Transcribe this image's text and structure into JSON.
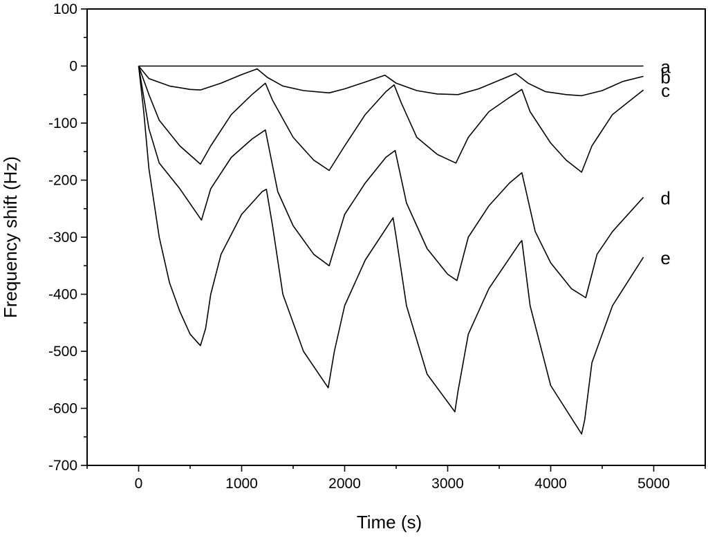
{
  "chart_data": {
    "type": "line",
    "title": "",
    "xlabel": "Time (s)",
    "ylabel": "Frequency shift (Hz)",
    "xlim": [
      -500,
      5500
    ],
    "ylim": [
      -700,
      100
    ],
    "xticks": [
      0,
      1000,
      2000,
      3000,
      4000,
      5000
    ],
    "yticks": [
      100,
      0,
      -100,
      -200,
      -300,
      -400,
      -500,
      -600,
      -700
    ],
    "grid": false,
    "legend": "inline labels at right end of curves",
    "series": [
      {
        "name": "a",
        "x": [
          0,
          4900
        ],
        "y": [
          0,
          0
        ]
      },
      {
        "name": "b",
        "x": [
          0,
          100,
          300,
          500,
          600,
          800,
          1000,
          1150,
          1250,
          1400,
          1600,
          1850,
          2000,
          2200,
          2390,
          2500,
          2700,
          2900,
          3100,
          3300,
          3500,
          3660,
          3780,
          3950,
          4150,
          4300,
          4500,
          4700,
          4900
        ],
        "y": [
          0,
          -22,
          -35,
          -41,
          -42,
          -30,
          -15,
          -5,
          -20,
          -35,
          -43,
          -47,
          -40,
          -28,
          -16,
          -30,
          -43,
          -49,
          -50,
          -40,
          -25,
          -13,
          -30,
          -45,
          -50,
          -52,
          -43,
          -27,
          -18
        ]
      },
      {
        "name": "c",
        "x": [
          0,
          100,
          200,
          400,
          600,
          700,
          900,
          1100,
          1230,
          1300,
          1500,
          1700,
          1850,
          2000,
          2200,
          2400,
          2480,
          2550,
          2700,
          2900,
          3080,
          3200,
          3400,
          3600,
          3720,
          3800,
          4000,
          4150,
          4300,
          4400,
          4600,
          4900
        ],
        "y": [
          0,
          -50,
          -95,
          -140,
          -172,
          -140,
          -85,
          -50,
          -30,
          -60,
          -125,
          -165,
          -183,
          -140,
          -85,
          -45,
          -33,
          -65,
          -125,
          -155,
          -170,
          -125,
          -80,
          -55,
          -41,
          -80,
          -135,
          -165,
          -186,
          -140,
          -85,
          -42
        ]
      },
      {
        "name": "d",
        "x": [
          0,
          100,
          200,
          400,
          610,
          700,
          900,
          1100,
          1230,
          1350,
          1500,
          1700,
          1850,
          2000,
          2200,
          2400,
          2490,
          2600,
          2800,
          3000,
          3090,
          3200,
          3400,
          3600,
          3720,
          3850,
          4000,
          4200,
          4340,
          4450,
          4600,
          4900
        ],
        "y": [
          0,
          -110,
          -170,
          -215,
          -270,
          -215,
          -160,
          -128,
          -112,
          -220,
          -280,
          -330,
          -350,
          -260,
          -205,
          -160,
          -148,
          -240,
          -320,
          -365,
          -376,
          -300,
          -245,
          -205,
          -187,
          -290,
          -345,
          -390,
          -406,
          -330,
          -290,
          -230
        ]
      },
      {
        "name": "e",
        "x": [
          0,
          50,
          100,
          200,
          300,
          400,
          500,
          600,
          650,
          700,
          800,
          1000,
          1200,
          1240,
          1300,
          1400,
          1600,
          1840,
          1900,
          2000,
          2200,
          2470,
          2500,
          2600,
          2800,
          3070,
          3100,
          3200,
          3400,
          3700,
          3720,
          3800,
          4000,
          4300,
          4330,
          4400,
          4600,
          4900
        ],
        "y": [
          0,
          -80,
          -180,
          -300,
          -380,
          -430,
          -470,
          -490,
          -460,
          -400,
          -330,
          -260,
          -220,
          -216,
          -280,
          -400,
          -500,
          -564,
          -500,
          -420,
          -340,
          -266,
          -300,
          -420,
          -540,
          -606,
          -570,
          -470,
          -390,
          -310,
          -306,
          -420,
          -560,
          -645,
          -620,
          -520,
          -420,
          -335
        ]
      }
    ]
  }
}
